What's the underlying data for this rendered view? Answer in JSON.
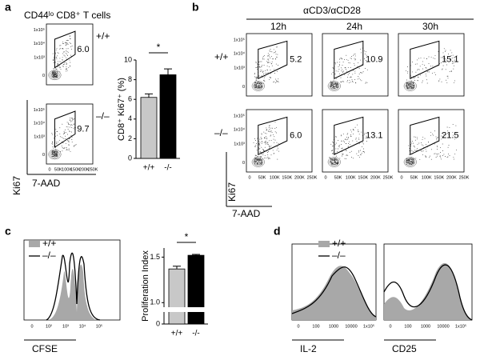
{
  "panels": {
    "a": {
      "label": "a",
      "title": "CD44ˡᵒ CD8⁺ T cells",
      "genotypes": [
        "+/+",
        "–/–"
      ],
      "gates": [
        "6.0",
        "9.7"
      ]
    },
    "b": {
      "label": "b",
      "stimulus": "αCD3/αCD28",
      "times": [
        "12h",
        "24h",
        "30h"
      ],
      "genotypes": [
        "+/+",
        "–/–"
      ],
      "gates": [
        [
          "5.2",
          "10.9",
          "15.1"
        ],
        [
          "6.0",
          "13.1",
          "21.5"
        ]
      ]
    },
    "c": {
      "label": "c",
      "legend": [
        "+/+",
        "–/–"
      ],
      "x_label": "CFSE",
      "x_ticks": [
        "0",
        "10²",
        "10³",
        "10⁴",
        "10⁵"
      ]
    },
    "d": {
      "label": "d",
      "legend": [
        "+/+",
        "–/–"
      ],
      "x_labels": [
        "IL-2",
        "CD25"
      ],
      "x_ticks": [
        "0",
        "100",
        "1000",
        "10000",
        "1x10⁵"
      ]
    }
  },
  "flow": {
    "y_ticks": [
      "1x10⁵",
      "1x10⁴",
      "1x10³",
      "0"
    ],
    "x_ticks": [
      "0",
      "50K",
      "100K",
      "150K",
      "200K",
      "250K"
    ],
    "y_label": "Ki67",
    "x_label": "7-AAD"
  },
  "chart_data": [
    {
      "type": "bar",
      "ylabel": "CD8⁺ Ki67⁺ (%)",
      "categories": [
        "+/+",
        "-/-"
      ],
      "values": [
        6.2,
        8.5
      ],
      "errors": [
        0.35,
        0.6
      ],
      "colors": [
        "#c8c8c8",
        "#000000"
      ],
      "ylim": [
        0,
        10
      ],
      "yticks": [
        0,
        2,
        4,
        6,
        8,
        10
      ],
      "annotation": "*"
    },
    {
      "type": "bar",
      "ylabel": "Proliferation Index",
      "categories": [
        "+/+",
        "-/-"
      ],
      "values": [
        1.37,
        1.52
      ],
      "errors": [
        0.03,
        0.01
      ],
      "colors": [
        "#c8c8c8",
        "#000000"
      ],
      "ylim": [
        0,
        1.6
      ],
      "axis_break": [
        0.2,
        0.95
      ],
      "yticks": [
        0,
        {
          "value": 1.0,
          "label": "1.0"
        },
        1.5
      ],
      "annotation": "*"
    }
  ]
}
